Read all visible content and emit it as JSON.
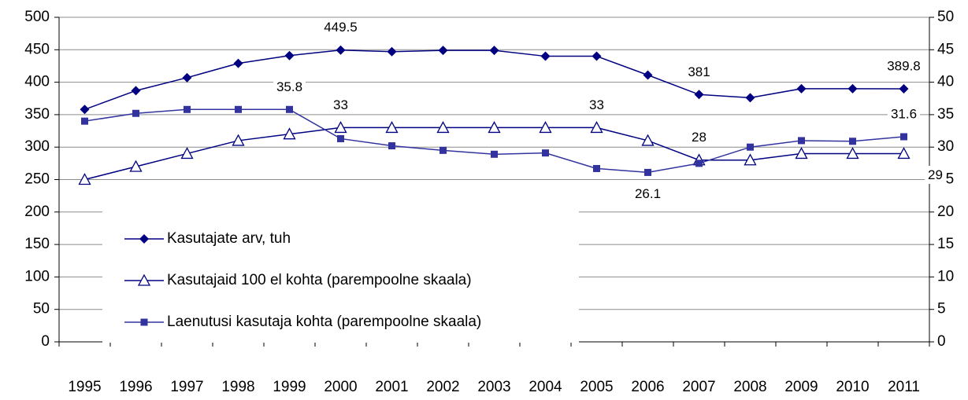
{
  "chart_data": {
    "type": "line",
    "categories": [
      "1995",
      "1996",
      "1997",
      "1998",
      "1999",
      "2000",
      "2001",
      "2002",
      "2003",
      "2004",
      "2005",
      "2006",
      "2007",
      "2008",
      "2009",
      "2010",
      "2011"
    ],
    "ylim": [
      0,
      500
    ],
    "yticks": [
      0,
      50,
      100,
      150,
      200,
      250,
      300,
      350,
      400,
      450,
      500
    ],
    "y2lim": [
      0,
      50
    ],
    "y2ticks": [
      0,
      5,
      10,
      15,
      20,
      25,
      30,
      35,
      40,
      45,
      50
    ],
    "grid": true,
    "legend": "lower-left",
    "series": [
      {
        "name": "Kasutajate arv, tuh",
        "color": "#000080",
        "marker": "diamond",
        "values": [
          358,
          387,
          407,
          429,
          441,
          449.5,
          447,
          449,
          449,
          440,
          440,
          411,
          381,
          376,
          390,
          390,
          389.8
        ],
        "value_labels": [
          null,
          null,
          null,
          null,
          null,
          "449.5",
          null,
          null,
          null,
          null,
          null,
          null,
          "381",
          null,
          null,
          null,
          "389.8"
        ]
      },
      {
        "name": "Kasutajaid 100 el kohta (parempoolne skaala)",
        "color": "#000080",
        "marker": "triangle",
        "axis": "y2",
        "values": [
          25,
          27,
          29,
          31,
          32,
          33,
          33,
          33,
          33,
          33,
          33,
          31,
          28,
          28,
          29,
          29,
          29
        ],
        "value_labels": [
          null,
          null,
          null,
          null,
          null,
          "33",
          null,
          null,
          null,
          null,
          "33",
          null,
          "28",
          null,
          null,
          null,
          "29"
        ]
      },
      {
        "name": "Laenutusi kasutaja kohta (parempoolne skaala)",
        "color": "#3333a0",
        "marker": "square",
        "axis": "y2",
        "values": [
          34,
          35.2,
          35.8,
          35.8,
          35.8,
          31.3,
          30.2,
          29.5,
          28.9,
          29.1,
          26.7,
          26.1,
          27.5,
          30,
          31,
          30.9,
          31.6
        ],
        "value_labels": [
          null,
          null,
          null,
          null,
          "35.8",
          null,
          null,
          null,
          null,
          null,
          null,
          "26.1",
          null,
          null,
          null,
          null,
          "31.6"
        ]
      }
    ]
  }
}
